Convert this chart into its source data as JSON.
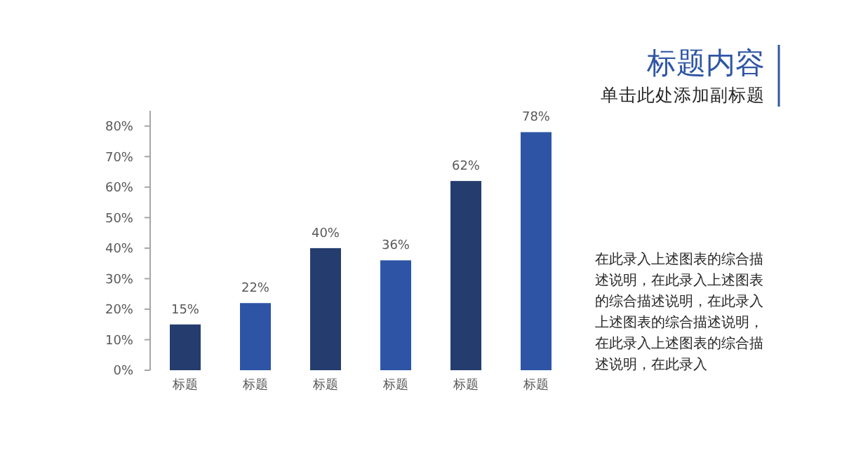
{
  "chart_data": {
    "type": "bar",
    "title": "标题内容",
    "subtitle": "单击此处添加副标题",
    "annotations": [
      "在此录入上述图表的综合描述说明，在此录入上述图表的综合描述说明，在此录入上述图表的综合描述说明，在此录入上述图表的综合描述说明，在此录入"
    ],
    "categories": [
      "标题",
      "标题",
      "标题",
      "标题",
      "标题",
      "标题"
    ],
    "values": [
      15,
      22,
      40,
      36,
      62,
      78
    ],
    "colors": [
      "#253d6e",
      "#2e55a5",
      "#253d6e",
      "#2e55a5",
      "#253d6e",
      "#2e55a5"
    ],
    "value_labels": [
      "15%",
      "22%",
      "40%",
      "36%",
      "62%",
      "78%"
    ],
    "ylim": [
      0,
      85
    ],
    "yticks": [
      {
        "value": 0,
        "label": "0%"
      },
      {
        "value": 10,
        "label": "10%"
      },
      {
        "value": 20,
        "label": "20%"
      },
      {
        "value": 30,
        "label": "30%"
      },
      {
        "value": 40,
        "label": "40%"
      },
      {
        "value": 50,
        "label": "50%"
      },
      {
        "value": 60,
        "label": "60%"
      },
      {
        "value": 70,
        "label": "70%"
      },
      {
        "value": 80,
        "label": "80%"
      }
    ],
    "grid": false
  }
}
